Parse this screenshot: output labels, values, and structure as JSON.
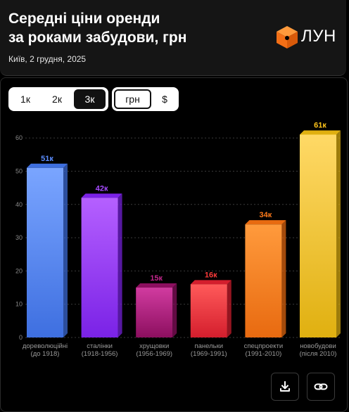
{
  "header": {
    "title_line1": "Середні ціни оренди",
    "title_line2": "за роками забудови, грн",
    "subtitle": "Київ, 2 грудня, 2025",
    "brand": "ЛУН"
  },
  "rooms_toggle": {
    "options": [
      "1к",
      "2к",
      "3к"
    ],
    "selected": "3к"
  },
  "currency_toggle": {
    "options": [
      "грн",
      "$"
    ],
    "selected": "грн"
  },
  "colors": {
    "dorev": [
      "#7aa5ff",
      "#3e6fe0"
    ],
    "stalin": [
      "#b560ff",
      "#7a22e6"
    ],
    "khrush": [
      "#d13ba0",
      "#8c0f5f"
    ],
    "panel": [
      "#ff5a5a",
      "#d41e2d"
    ],
    "spec": [
      "#ff9a3c",
      "#e86a10"
    ],
    "novo": [
      "#ffd966",
      "#e0b010"
    ]
  },
  "chart_data": {
    "type": "bar",
    "categories": [
      [
        "дореволюційні",
        "(до 1918)"
      ],
      [
        "сталінки",
        "(1918-1956)"
      ],
      [
        "хрущовки",
        "(1956-1969)"
      ],
      [
        "панельки",
        "(1969-1991)"
      ],
      [
        "спецпроекти",
        "(1991-2010)"
      ],
      [
        "новобудови",
        "(після 2010)"
      ]
    ],
    "values": [
      51,
      42,
      15,
      16,
      34,
      61
    ],
    "data_labels": [
      "51к",
      "42к",
      "15к",
      "16к",
      "34к",
      "61к"
    ],
    "label_colors": [
      "#5b8dff",
      "#a64bff",
      "#c2268c",
      "#ff3b3b",
      "#ff7a1a",
      "#ffc41a"
    ],
    "yticks": [
      0,
      10,
      20,
      30,
      40,
      50,
      60
    ],
    "ylim": [
      0,
      63
    ],
    "grid": true
  }
}
